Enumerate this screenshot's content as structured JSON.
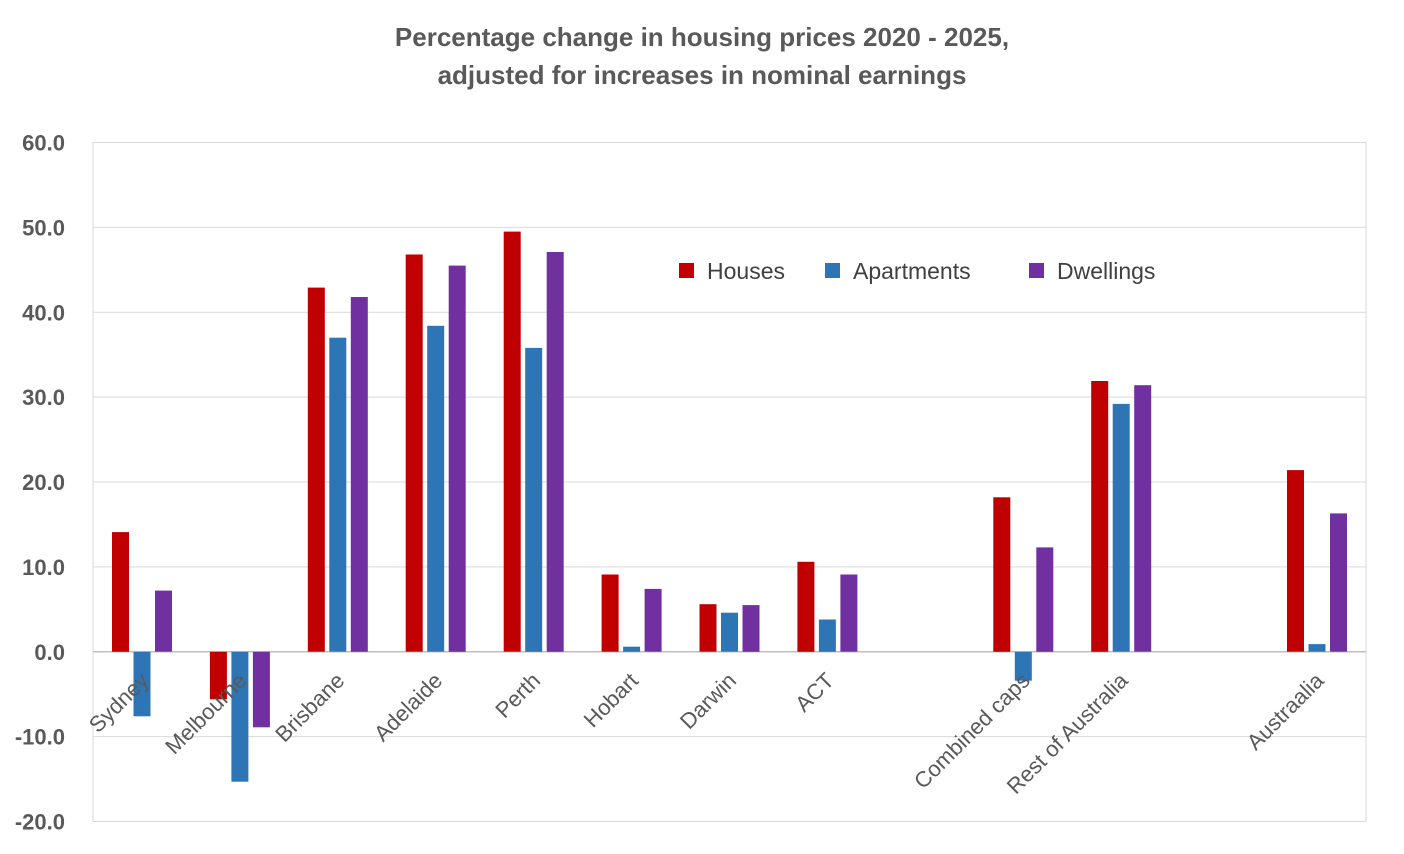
{
  "chart_data": {
    "type": "bar",
    "title": "Percentage change in housing prices 2020 - 2025,",
    "subtitle": "adjusted for increases in nominal earnings",
    "xlabel": "",
    "ylabel": "",
    "ylim": [
      -20,
      60
    ],
    "yticks": [
      "60.0",
      "50.0",
      "40.0",
      "30.0",
      "20.0",
      "10.0",
      "0.0",
      "-10.0",
      "-20.0"
    ],
    "grid": true,
    "legend_position": "top-right",
    "categories": [
      "Sydney",
      "Melbourne",
      "Brisbane",
      "Adelaide",
      "Perth",
      "Hobart",
      "Darwin",
      "ACT",
      "",
      "Combined caps",
      "Rest of Australia",
      "",
      "Austraalia"
    ],
    "series": [
      {
        "name": "Houses",
        "color": "#c00000",
        "values": [
          14.1,
          -5.6,
          42.9,
          46.8,
          49.5,
          9.1,
          5.6,
          10.6,
          null,
          18.2,
          31.9,
          null,
          21.4
        ]
      },
      {
        "name": "Apartments",
        "color": "#2e75b6",
        "values": [
          -7.6,
          -15.3,
          37.0,
          38.4,
          35.8,
          0.6,
          4.6,
          3.8,
          null,
          -3.4,
          29.2,
          null,
          0.9
        ]
      },
      {
        "name": "Dwellings",
        "color": "#7030a0",
        "values": [
          7.2,
          -8.9,
          41.8,
          45.5,
          47.1,
          7.4,
          5.5,
          9.1,
          null,
          12.3,
          31.4,
          null,
          16.3
        ]
      }
    ]
  }
}
